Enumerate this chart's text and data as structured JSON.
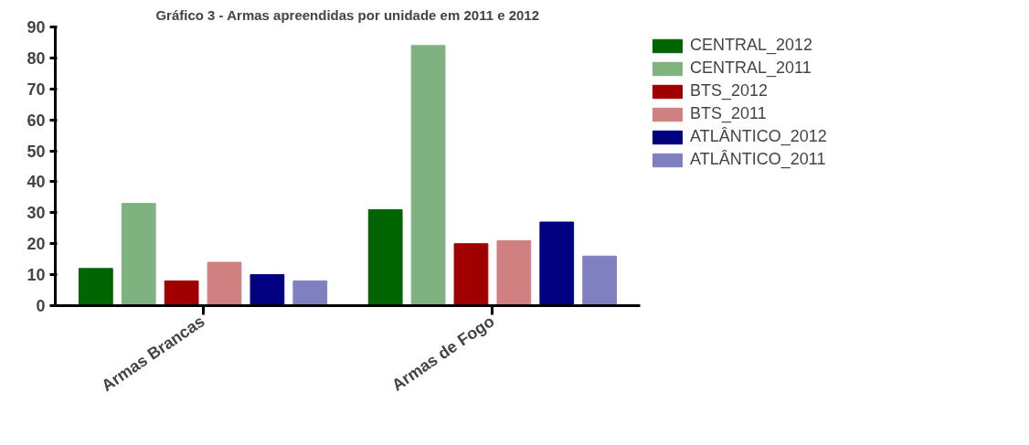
{
  "chart_data": {
    "type": "bar",
    "title": "Gráfico 3 - Armas apreendidas por unidade em 2011 e 2012",
    "categories": [
      "Armas Brancas",
      "Armas de Fogo"
    ],
    "series": [
      {
        "name": "CENTRAL_2012",
        "color": "#006400",
        "values": [
          12,
          31
        ]
      },
      {
        "name": "CENTRAL_2011",
        "color": "#80b280",
        "values": [
          33,
          84
        ]
      },
      {
        "name": "BTS_2012",
        "color": "#a00000",
        "values": [
          8,
          20
        ]
      },
      {
        "name": "BTS_2011",
        "color": "#d08080",
        "values": [
          14,
          21
        ]
      },
      {
        "name": "ATLÂNTICO_2012",
        "color": "#000080",
        "values": [
          10,
          27
        ]
      },
      {
        "name": "ATLÂNTICO_2011",
        "color": "#8080c0",
        "values": [
          8,
          16
        ]
      }
    ],
    "ylim": [
      0,
      90
    ],
    "yticks": [
      0,
      10,
      20,
      30,
      40,
      50,
      60,
      70,
      80,
      90
    ],
    "grid": false,
    "legend": "top right"
  }
}
